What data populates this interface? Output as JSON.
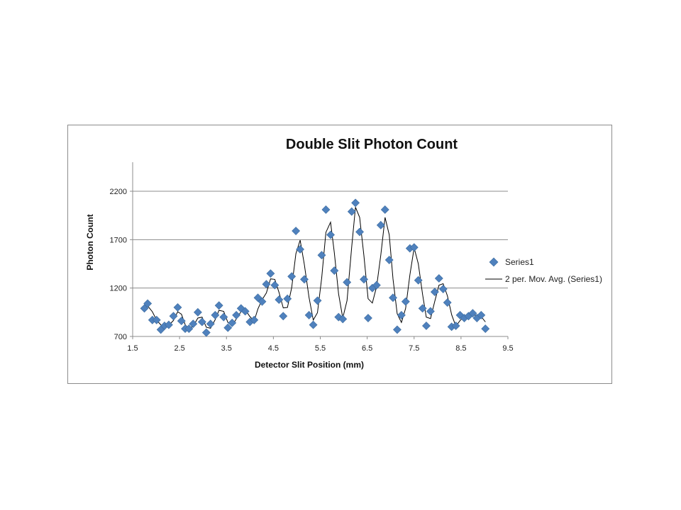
{
  "chart_data": {
    "type": "scatter",
    "title": "Double Slit Photon Count",
    "xlabel": "Detector Slit Position (mm)",
    "ylabel": "Photon Count",
    "xlim": [
      1.5,
      9.5
    ],
    "ylim": [
      700,
      2500
    ],
    "xticks": [
      "1.5",
      "2.5",
      "3.5",
      "4.5",
      "5.5",
      "6.5",
      "7.5",
      "8.5",
      "9.5"
    ],
    "yticks": [
      "700",
      "1200",
      "1700",
      "2200"
    ],
    "grid": "horizontal",
    "legend_position": "right",
    "series": [
      {
        "name": "Series1",
        "marker": "diamond",
        "color": "#4f81bd",
        "x": [
          1.75,
          1.82,
          1.92,
          2.01,
          2.1,
          2.18,
          2.27,
          2.37,
          2.46,
          2.54,
          2.62,
          2.7,
          2.79,
          2.89,
          2.98,
          3.07,
          3.16,
          3.26,
          3.34,
          3.44,
          3.53,
          3.62,
          3.71,
          3.81,
          3.9,
          4.0,
          4.09,
          4.17,
          4.26,
          4.35,
          4.44,
          4.53,
          4.62,
          4.71,
          4.8,
          4.89,
          4.98,
          5.07,
          5.16,
          5.26,
          5.35,
          5.44,
          5.53,
          5.62,
          5.72,
          5.8,
          5.89,
          5.98,
          6.07,
          6.17,
          6.25,
          6.34,
          6.43,
          6.52,
          6.61,
          6.7,
          6.79,
          6.88,
          6.97,
          7.05,
          7.14,
          7.23,
          7.32,
          7.41,
          7.5,
          7.59,
          7.68,
          7.76,
          7.85,
          7.94,
          8.03,
          8.12,
          8.21,
          8.3,
          8.39,
          8.48,
          8.57,
          8.66,
          8.75,
          8.84,
          8.93,
          9.02
        ],
        "y": [
          990,
          1040,
          870,
          870,
          770,
          810,
          820,
          910,
          1000,
          860,
          780,
          780,
          830,
          950,
          850,
          740,
          830,
          920,
          1020,
          900,
          790,
          840,
          920,
          990,
          960,
          850,
          870,
          1100,
          1060,
          1240,
          1350,
          1230,
          1080,
          910,
          1090,
          1320,
          1790,
          1600,
          1290,
          920,
          820,
          1070,
          1540,
          2010,
          1750,
          1380,
          900,
          880,
          1260,
          1990,
          2080,
          1780,
          1290,
          890,
          1200,
          1230,
          1850,
          2010,
          1490,
          1100,
          770,
          920,
          1060,
          1610,
          1620,
          1280,
          990,
          810,
          960,
          1160,
          1300,
          1190,
          1050,
          800,
          810,
          920,
          890,
          910,
          940,
          890,
          920,
          780
        ]
      },
      {
        "name": "2 per. Mov. Avg. (Series1)",
        "type": "line",
        "color": "#000000"
      }
    ]
  }
}
